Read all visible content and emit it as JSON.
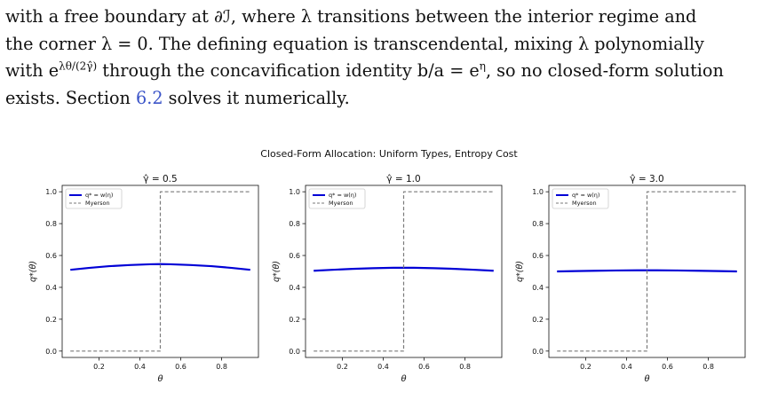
{
  "paragraph": {
    "line1": "with a free boundary at ∂ℐ, where λ transitions between the interior regime and",
    "line2": "the corner λ = 0. The defining equation is transcendental, mixing λ polynomially",
    "line3_pre": "with e",
    "line3_sup": "λθ/(2γ̂)",
    "line3_post": " through the concavification identity b/a = e",
    "line3_sup2": "η",
    "line3_end": ", so no closed-form solution",
    "line4_pre": "exists. Section ",
    "line4_ref": "6.2",
    "line4_post": " solves it numerically."
  },
  "figure": {
    "suptitle": "Closed-Form Allocation: Uniform Types, Entropy Cost",
    "panels": [
      {
        "title": "γ̂ = 0.5"
      },
      {
        "title": "γ̂ = 1.0"
      },
      {
        "title": "γ̂ = 3.0"
      }
    ],
    "xlabel": "θ",
    "ylabel": "q*(θ)",
    "legend": [
      "q* = w(η)",
      "Myerson"
    ]
  },
  "colors": {
    "allocation_line": "#0000d6",
    "myerson_line": "#7a7a7a",
    "link": "#3b54c8"
  },
  "chart_data": [
    {
      "type": "line",
      "title": "γ̂ = 0.5",
      "xlabel": "θ",
      "ylabel": "q*(θ)",
      "xlim": [
        0.02,
        0.98
      ],
      "ylim": [
        -0.04,
        1.04
      ],
      "xticks": [
        0.2,
        0.4,
        0.6,
        0.8
      ],
      "yticks": [
        0.0,
        0.2,
        0.4,
        0.6,
        0.8,
        1.0
      ],
      "legend": "top-left",
      "series": [
        {
          "name": "q* = w(η)",
          "style": "solid",
          "x": [
            0.06,
            0.15,
            0.25,
            0.35,
            0.45,
            0.5,
            0.55,
            0.65,
            0.75,
            0.85,
            0.94
          ],
          "y": [
            0.51,
            0.522,
            0.533,
            0.54,
            0.545,
            0.546,
            0.545,
            0.54,
            0.533,
            0.522,
            0.51
          ]
        },
        {
          "name": "Myerson",
          "style": "dashed",
          "x": [
            0.06,
            0.5,
            0.5,
            0.94
          ],
          "y": [
            0.0,
            0.0,
            1.0,
            1.0
          ]
        }
      ]
    },
    {
      "type": "line",
      "title": "γ̂ = 1.0",
      "xlabel": "θ",
      "ylabel": "q*(θ)",
      "xlim": [
        0.02,
        0.98
      ],
      "ylim": [
        -0.04,
        1.04
      ],
      "xticks": [
        0.2,
        0.4,
        0.6,
        0.8
      ],
      "yticks": [
        0.0,
        0.2,
        0.4,
        0.6,
        0.8,
        1.0
      ],
      "legend": "top-left",
      "series": [
        {
          "name": "q* = w(η)",
          "style": "solid",
          "x": [
            0.06,
            0.15,
            0.25,
            0.35,
            0.45,
            0.5,
            0.55,
            0.65,
            0.75,
            0.85,
            0.94
          ],
          "y": [
            0.504,
            0.51,
            0.516,
            0.52,
            0.523,
            0.523,
            0.523,
            0.52,
            0.516,
            0.51,
            0.504
          ]
        },
        {
          "name": "Myerson",
          "style": "dashed",
          "x": [
            0.06,
            0.5,
            0.5,
            0.94
          ],
          "y": [
            0.0,
            0.0,
            1.0,
            1.0
          ]
        }
      ]
    },
    {
      "type": "line",
      "title": "γ̂ = 3.0",
      "xlabel": "θ",
      "ylabel": "q*(θ)",
      "xlim": [
        0.02,
        0.98
      ],
      "ylim": [
        -0.04,
        1.04
      ],
      "xticks": [
        0.2,
        0.4,
        0.6,
        0.8
      ],
      "yticks": [
        0.0,
        0.2,
        0.4,
        0.6,
        0.8,
        1.0
      ],
      "legend": "top-left",
      "series": [
        {
          "name": "q* = w(η)",
          "style": "solid",
          "x": [
            0.06,
            0.15,
            0.25,
            0.35,
            0.45,
            0.5,
            0.55,
            0.65,
            0.75,
            0.85,
            0.94
          ],
          "y": [
            0.5,
            0.502,
            0.504,
            0.506,
            0.507,
            0.507,
            0.507,
            0.506,
            0.504,
            0.502,
            0.5
          ]
        },
        {
          "name": "Myerson",
          "style": "dashed",
          "x": [
            0.06,
            0.5,
            0.5,
            0.94
          ],
          "y": [
            0.0,
            0.0,
            1.0,
            1.0
          ]
        }
      ]
    }
  ]
}
